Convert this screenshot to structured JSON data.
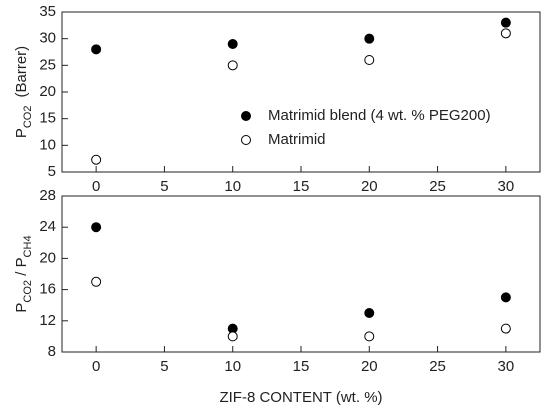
{
  "chart_data": [
    {
      "type": "scatter",
      "ylabel_parts": [
        {
          "text": "P"
        },
        {
          "text": "CO2",
          "sub": true
        },
        {
          "text": "(Barrer)"
        }
      ],
      "x": [
        0,
        10,
        20,
        30
      ],
      "series": [
        {
          "name": "Matrimid blend (4 wt. % PEG200)",
          "color": "#000000",
          "filled": true,
          "values": [
            28,
            29,
            30,
            33
          ]
        },
        {
          "name": "Matrimid",
          "color": "#000000",
          "filled": false,
          "values": [
            7.3,
            25,
            26,
            31
          ]
        }
      ],
      "xlim": [
        -2.5,
        32.5
      ],
      "xticks": [
        0,
        5,
        10,
        15,
        20,
        25,
        30
      ],
      "ylim": [
        5,
        35
      ],
      "yticks": [
        5,
        10,
        15,
        20,
        25,
        30,
        35
      ],
      "legend": "center"
    },
    {
      "type": "scatter",
      "xlabel": "ZIF-8  CONTENT   (wt. %)",
      "ylabel_parts": [
        {
          "text": "P"
        },
        {
          "text": "CO2",
          "sub": true
        },
        {
          "text": " / P"
        },
        {
          "text": "CH4",
          "sub": true
        }
      ],
      "x": [
        0,
        10,
        20,
        30
      ],
      "series": [
        {
          "name": "Matrimid blend (4 wt. % PEG200)",
          "color": "#000000",
          "filled": true,
          "values": [
            24,
            11,
            13,
            15
          ]
        },
        {
          "name": "Matrimid",
          "color": "#000000",
          "filled": false,
          "values": [
            17,
            10,
            10,
            11
          ]
        }
      ],
      "xlim": [
        -2.5,
        32.5
      ],
      "xticks": [
        0,
        5,
        10,
        15,
        20,
        25,
        30
      ],
      "ylim": [
        8,
        28
      ],
      "yticks": [
        8,
        12,
        16,
        20,
        24,
        28
      ]
    }
  ]
}
